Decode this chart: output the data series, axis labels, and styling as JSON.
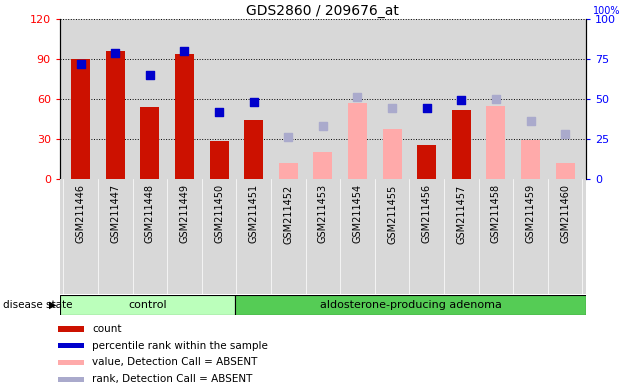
{
  "title": "GDS2860 / 209676_at",
  "categories": [
    "GSM211446",
    "GSM211447",
    "GSM211448",
    "GSM211449",
    "GSM211450",
    "GSM211451",
    "GSM211452",
    "GSM211453",
    "GSM211454",
    "GSM211455",
    "GSM211456",
    "GSM211457",
    "GSM211458",
    "GSM211459",
    "GSM211460"
  ],
  "count_values": [
    90,
    96,
    54,
    94,
    28,
    44,
    null,
    null,
    null,
    null,
    25,
    52,
    null,
    null,
    null
  ],
  "rank_values": [
    72,
    79,
    65,
    80,
    42,
    48,
    null,
    null,
    null,
    null,
    44,
    49,
    null,
    null,
    null
  ],
  "absent_value": [
    null,
    null,
    null,
    null,
    null,
    null,
    12,
    20,
    57,
    37,
    null,
    null,
    55,
    29,
    12
  ],
  "absent_rank": [
    null,
    null,
    null,
    null,
    null,
    null,
    26,
    33,
    51,
    44,
    null,
    null,
    50,
    36,
    28
  ],
  "left_ylim": [
    0,
    120
  ],
  "right_ylim": [
    0,
    100
  ],
  "left_yticks": [
    0,
    30,
    60,
    90,
    120
  ],
  "right_yticks": [
    0,
    25,
    50,
    75,
    100
  ],
  "bar_color_present": "#cc1100",
  "bar_color_absent": "#ffaaaa",
  "dot_color_present": "#0000cc",
  "dot_color_absent": "#aaaacc",
  "control_bg": "#bbffbb",
  "adenoma_bg": "#55cc55",
  "plot_bg": "#d8d8d8",
  "disease_state_label": "disease state",
  "control_label": "control",
  "adenoma_label": "aldosterone-producing adenoma",
  "legend_items": [
    "count",
    "percentile rank within the sample",
    "value, Detection Call = ABSENT",
    "rank, Detection Call = ABSENT"
  ],
  "title_fontsize": 10,
  "n_control": 5,
  "n_total": 15
}
